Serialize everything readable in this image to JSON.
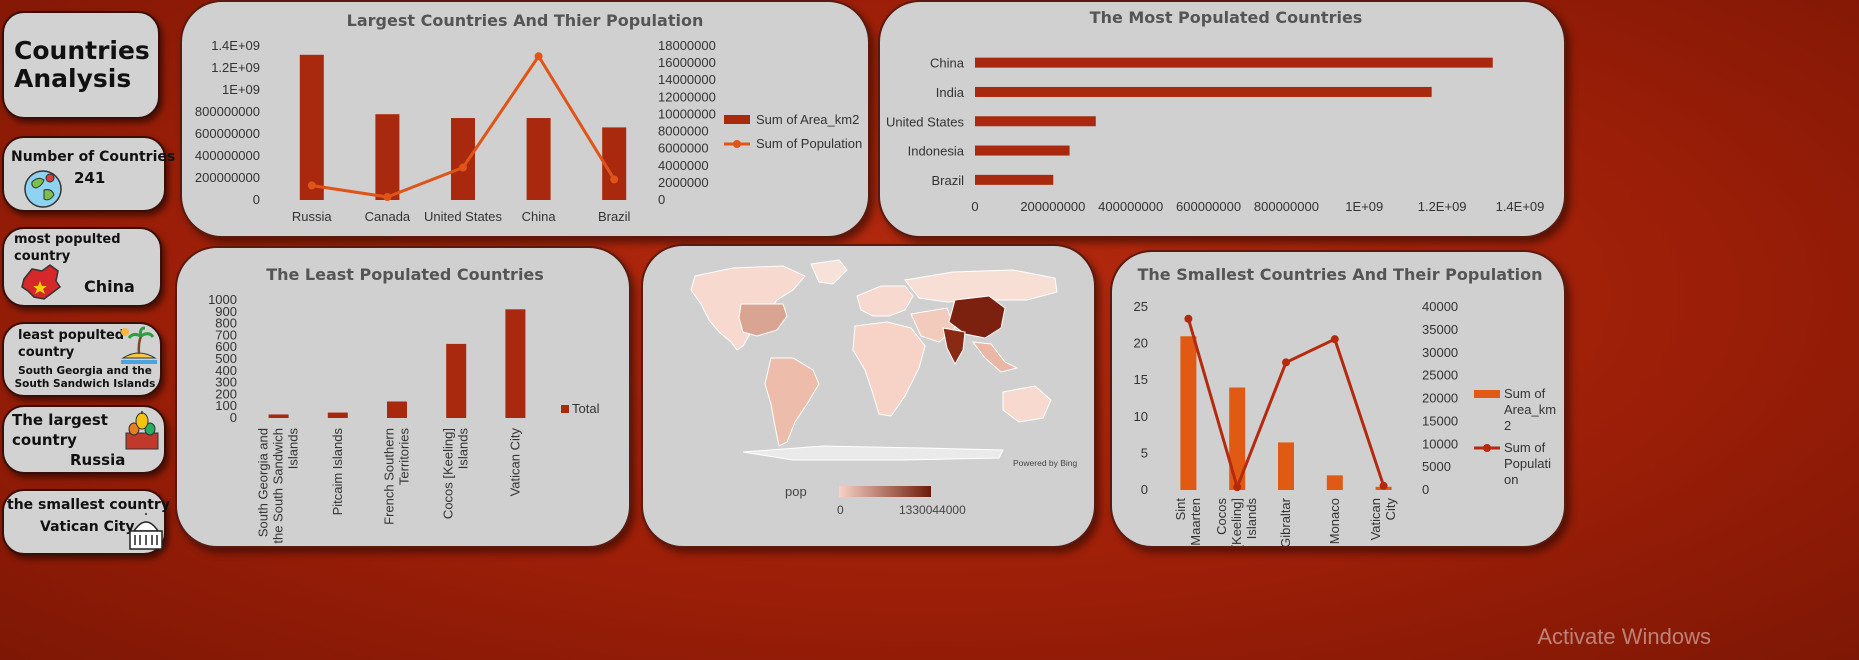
{
  "sidebar": {
    "title": "Countries Analysis",
    "count_label": "Number of Countries",
    "count_value": "241",
    "most_label": "most populted country",
    "most_value": "China",
    "least_label": "least populted country",
    "least_value": "South Georgia and the South Sandwich Islands",
    "largest_label": "The largest country",
    "largest_value": "Russia",
    "smallest_label": "the smallest country",
    "smallest_value": "Vatican City"
  },
  "colors": {
    "bar": "#a8290d",
    "line": "#e05418",
    "bar2": "#e05a14",
    "line2": "#b52a0e"
  },
  "icons": [
    "globe-icon",
    "china-map-icon",
    "island-icon",
    "kremlin-icon",
    "vatican-icon"
  ],
  "chart_data": [
    {
      "id": "largest",
      "type": "bar+line",
      "title": "Largest Countries And Thier Population",
      "categories": [
        "Russia",
        "Canada",
        "United States",
        "China",
        "Brazil"
      ],
      "series": [
        {
          "name": "Sum of Area_km2",
          "axis": "left",
          "kind": "bar",
          "values": [
            1320000000,
            780000000,
            745000000,
            745000000,
            660000000
          ]
        },
        {
          "name": "Sum of Population",
          "axis": "right",
          "kind": "line",
          "values": [
            1700000,
            350000,
            3800000,
            16800000,
            2400000
          ]
        }
      ],
      "left_ticks": [
        "0",
        "200000000",
        "400000000",
        "600000000",
        "800000000",
        "1E+09",
        "1.2E+09",
        "1.4E+09"
      ],
      "right_ticks": [
        "0",
        "2000000",
        "4000000",
        "6000000",
        "8000000",
        "10000000",
        "12000000",
        "14000000",
        "16000000",
        "18000000"
      ],
      "left_lim": [
        0,
        1400000000
      ],
      "right_lim": [
        0,
        18000000
      ]
    },
    {
      "id": "most",
      "type": "hbar",
      "title": "The Most Populated Countries",
      "categories": [
        "China",
        "India",
        "United States",
        "Indonesia",
        "Brazil"
      ],
      "values": [
        1330044000,
        1173108000,
        310232000,
        242968000,
        201103000
      ],
      "ticks": [
        "0",
        "200000000",
        "400000000",
        "600000000",
        "800000000",
        "1E+09",
        "1.2E+09",
        "1.4E+09"
      ],
      "xlim": [
        0,
        1400000000
      ]
    },
    {
      "id": "least",
      "type": "bar",
      "title": "The Least Populated Countries",
      "categories": [
        "South Georgia and the South Sandwich Islands",
        "Pitcaim Islands",
        "French Southern Territories",
        "Cocos [Keeling] Islands",
        "Vatican City"
      ],
      "values": [
        30,
        46,
        140,
        628,
        921
      ],
      "legend": "Total",
      "ticks": [
        "0",
        "100",
        "200",
        "300",
        "400",
        "500",
        "600",
        "700",
        "800",
        "900",
        "1000"
      ],
      "ylim": [
        0,
        1000
      ]
    },
    {
      "id": "smallest",
      "type": "bar+line",
      "title": "The Smallest Countries And Their Population",
      "categories": [
        "Sint Maarten",
        "Cocos [Keeling] Islands",
        "Gibraltar",
        "Monaco",
        "Vatican City"
      ],
      "series": [
        {
          "name": "Sum of Area_km2",
          "axis": "left",
          "kind": "bar",
          "values": [
            21,
            14,
            6.5,
            2,
            0.44
          ]
        },
        {
          "name": "Sum of Population",
          "axis": "right",
          "kind": "line",
          "values": [
            37429,
            628,
            27884,
            32965,
            921
          ]
        }
      ],
      "left_ticks": [
        "0",
        "5",
        "10",
        "15",
        "20",
        "25"
      ],
      "right_ticks": [
        "0",
        "5000",
        "10000",
        "15000",
        "20000",
        "25000",
        "30000",
        "35000",
        "40000"
      ],
      "left_lim": [
        0,
        25
      ],
      "right_lim": [
        0,
        40000
      ]
    }
  ],
  "map": {
    "legend_title": "pop",
    "legend_min": "0",
    "legend_max": "1330044000",
    "credit": "Powered by Bing"
  },
  "watermark": "Activate Windows"
}
